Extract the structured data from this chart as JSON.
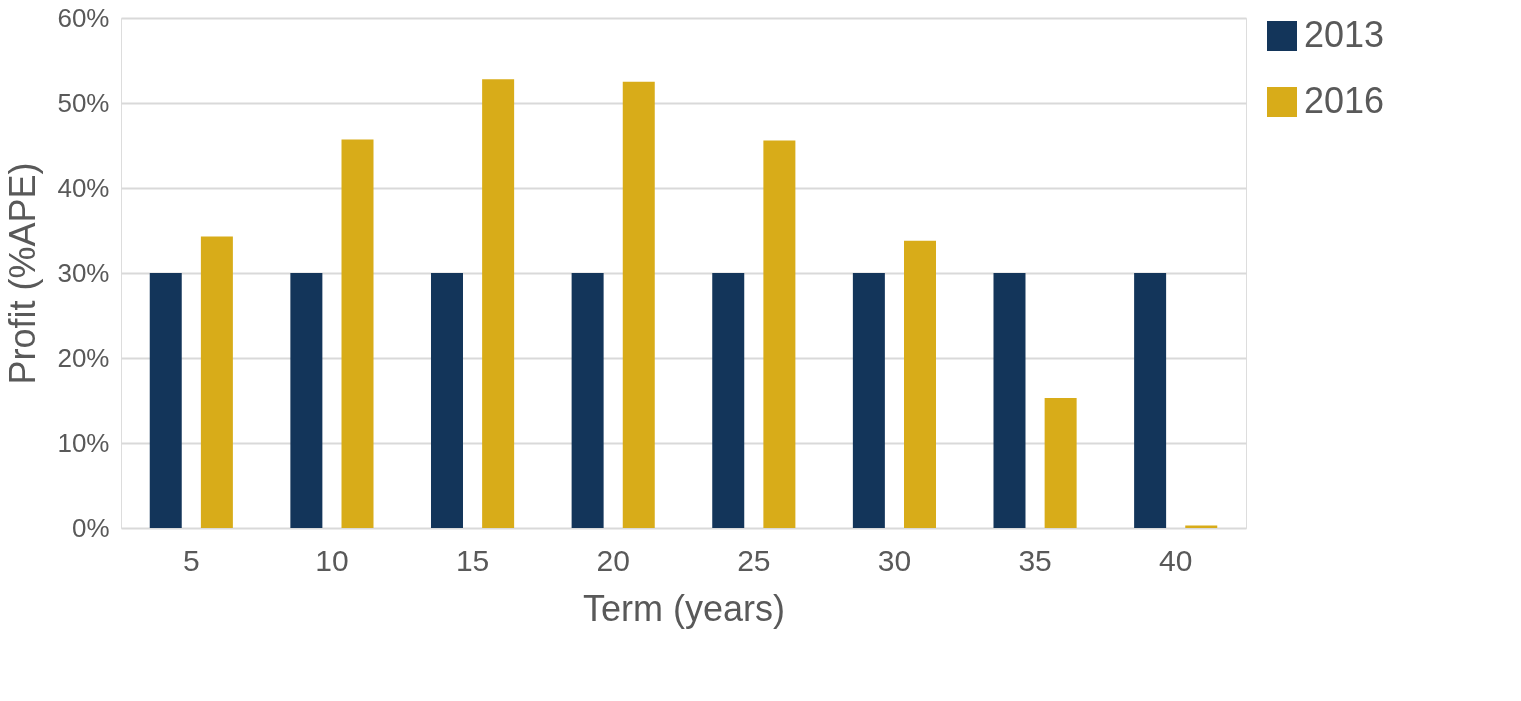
{
  "chart_data": {
    "type": "bar",
    "xlabel": "Term (years)",
    "ylabel": "Profit (%APE)",
    "categories": [
      "5",
      "10",
      "15",
      "20",
      "25",
      "30",
      "35",
      "40"
    ],
    "series": [
      {
        "name": "2013",
        "color": "#13355a",
        "values": [
          30.0,
          30.0,
          30.0,
          30.0,
          30.0,
          30.0,
          30.0,
          30.0
        ]
      },
      {
        "name": "2016",
        "color": "#d8ac19",
        "values": [
          34.3,
          45.7,
          52.8,
          52.5,
          45.6,
          33.8,
          15.3,
          0.3
        ]
      }
    ],
    "ylim": [
      0,
      60
    ],
    "yticks": [
      {
        "value": 0,
        "label": "0%"
      },
      {
        "value": 10,
        "label": "10%"
      },
      {
        "value": 20,
        "label": "20%"
      },
      {
        "value": 30,
        "label": "30%"
      },
      {
        "value": 40,
        "label": "40%"
      },
      {
        "value": 50,
        "label": "50%"
      },
      {
        "value": 60,
        "label": "60%"
      }
    ],
    "grid": "y",
    "legend": "right"
  }
}
